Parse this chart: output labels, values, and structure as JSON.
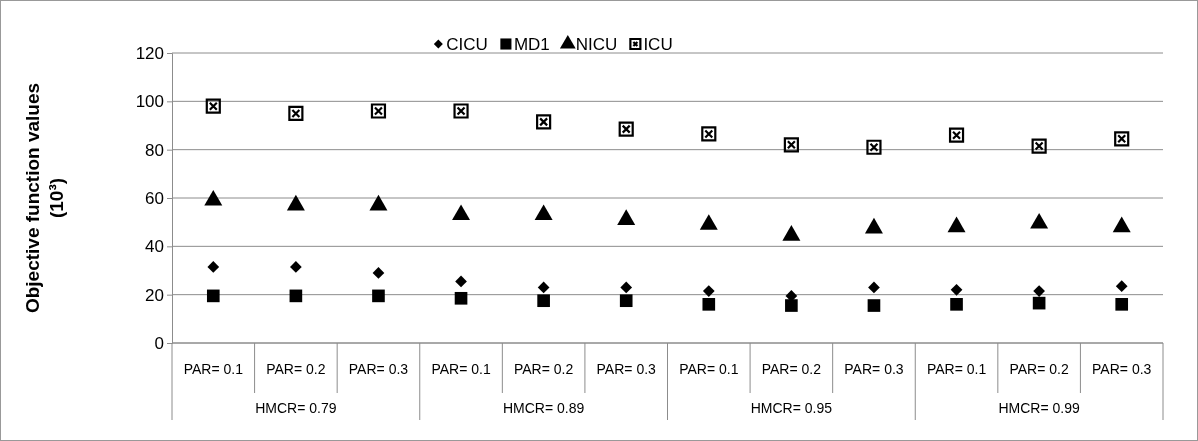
{
  "chart_data": {
    "type": "scatter",
    "ylabel": "Objective function values\n(10³)",
    "categories": [
      "PAR= 0.1",
      "PAR= 0.2",
      "PAR= 0.3",
      "PAR= 0.1",
      "PAR= 0.2",
      "PAR= 0.3",
      "PAR= 0.1",
      "PAR= 0.2",
      "PAR= 0.3",
      "PAR= 0.1",
      "PAR= 0.2",
      "PAR= 0.3"
    ],
    "annotations": [
      "HMCR= 0.79",
      "HMCR= 0.89",
      "HMCR= 0.95",
      "HMCR= 0.99"
    ],
    "series": [
      {
        "name": "CICU",
        "color": "#000000",
        "marker": "diamond",
        "values": [
          31.5,
          31.5,
          29,
          25.5,
          23,
          23,
          21.5,
          19.5,
          23,
          22,
          21.5,
          23.5
        ]
      },
      {
        "name": "MD1",
        "color": "#000000",
        "marker": "square",
        "values": [
          19.5,
          19.5,
          19.5,
          18.5,
          17.5,
          17.5,
          16,
          15.5,
          15.5,
          16,
          16.5,
          16
        ]
      },
      {
        "name": "NICU",
        "color": "#000000",
        "marker": "triangle",
        "values": [
          59,
          57,
          57,
          53,
          53,
          51,
          49,
          44.5,
          47.5,
          48,
          49.5,
          48
        ]
      },
      {
        "name": "ICU",
        "color": "#000000",
        "marker": "cross",
        "values": [
          98,
          95,
          96,
          96,
          91.5,
          88.5,
          86.5,
          82,
          81,
          86,
          81.5,
          84.5
        ]
      }
    ],
    "ylim": [
      0,
      120
    ],
    "yticks": [
      0,
      20,
      40,
      60,
      80,
      100,
      120
    ],
    "grid": "y",
    "legend": "top"
  }
}
